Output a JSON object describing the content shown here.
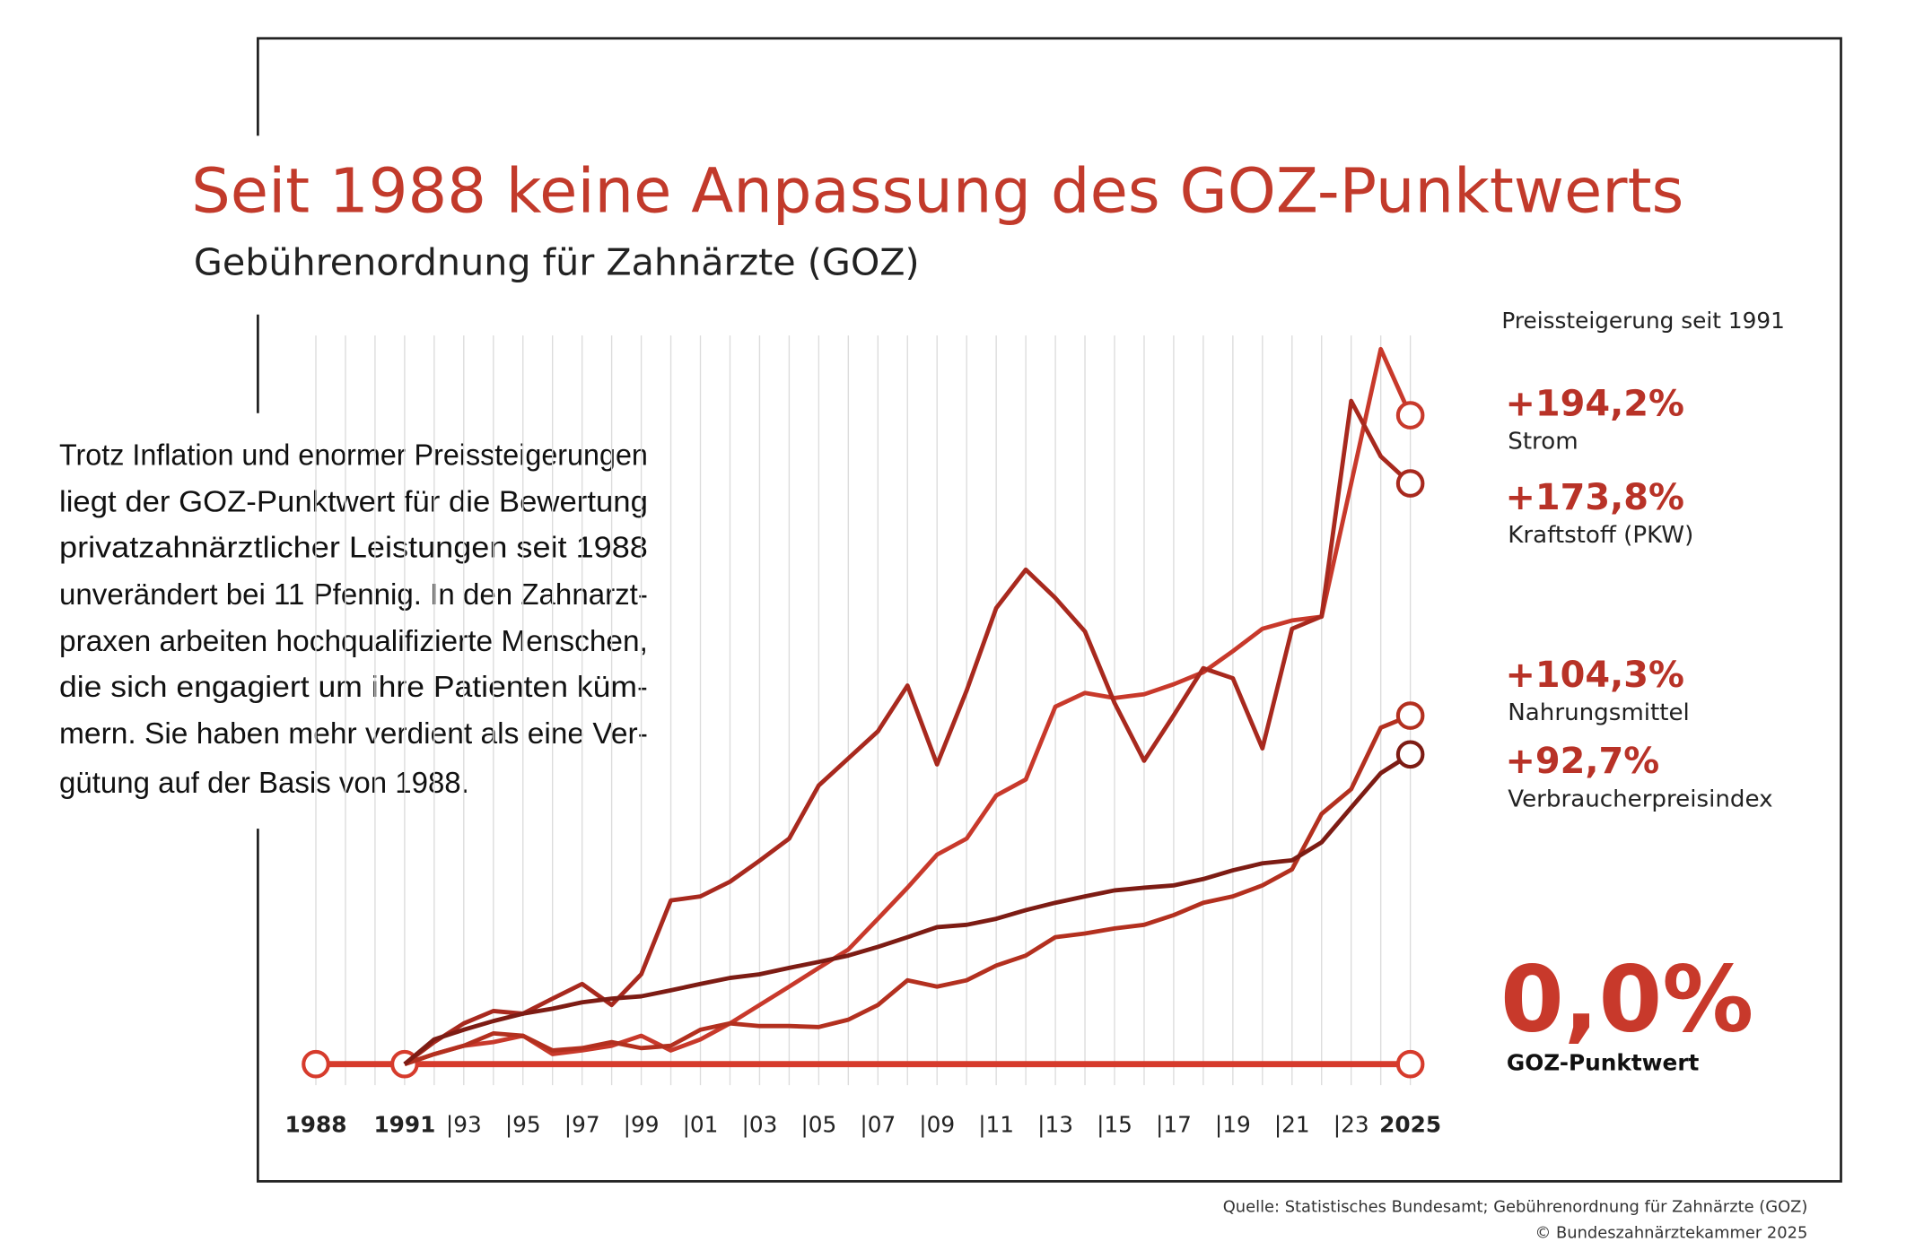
{
  "chart_data": {
    "type": "line",
    "title": "Seit 1988 keine Anpassung des GOZ-Punktwerts",
    "subtitle": "Gebührenordnung für Zahnärzte (GOZ)",
    "annotation": "Preissteigerung seit 1991",
    "text": [
      "Trotz Inflation und enormer Preissteigerungen",
      "liegt der GOZ-Punktwert für die Bewertung",
      "privatzahnärztlicher Leistungen seit 1988",
      "unverändert bei 11 Pfennig. In den Zahnarzt-",
      "praxen arbeiten hochqualifizierte Menschen,",
      "die sich engagiert um ihre Patienten küm-",
      "mern. Sie haben mehr verdient als eine Ver-",
      "gütung auf der Basis von 1988."
    ],
    "source": [
      "Quelle: Statistisches Bundesamt; Gebührenordnung für Zahnärzte (GOZ)",
      "© Bundeszahnärztekammer 2025"
    ],
    "xlim": [
      1988,
      2025
    ],
    "ylim": [
      0,
      215
    ],
    "xticks": [
      1988,
      1991,
      {
        "value": 1993,
        "label": "|93"
      },
      {
        "value": 1995,
        "label": "|95"
      },
      {
        "value": 1997,
        "label": "|97"
      },
      {
        "value": 1999,
        "label": "|99"
      },
      {
        "value": 2001,
        "label": "|01"
      },
      {
        "value": 2003,
        "label": "|03"
      },
      {
        "value": 2005,
        "label": "|05"
      },
      {
        "value": 2007,
        "label": "|07"
      },
      {
        "value": 2009,
        "label": "|09"
      },
      {
        "value": 2011,
        "label": "|11"
      },
      {
        "value": 2013,
        "label": "|13"
      },
      {
        "value": 2015,
        "label": "|15"
      },
      {
        "value": 2017,
        "label": "|17"
      },
      {
        "value": 2019,
        "label": "|19"
      },
      {
        "value": 2021,
        "label": "|21"
      },
      {
        "value": 2023,
        "label": "|23"
      },
      2025
    ],
    "xgrid": [
      1988,
      1989,
      1990,
      1991,
      1992,
      1993,
      1994,
      1995,
      1996,
      1997,
      1998,
      1999,
      2000,
      2001,
      2002,
      2003,
      2004,
      2005,
      2006,
      2007,
      2008,
      2009,
      2010,
      2011,
      2012,
      2013,
      2014,
      2015,
      2016,
      2017,
      2018,
      2019,
      2020,
      2021,
      2022,
      2023,
      2024,
      2025
    ],
    "x": [
      1991,
      1992,
      1993,
      1994,
      1995,
      1996,
      1997,
      1998,
      1999,
      2000,
      2001,
      2002,
      2003,
      2004,
      2005,
      2006,
      2007,
      2008,
      2009,
      2010,
      2011,
      2012,
      2013,
      2014,
      2015,
      2016,
      2017,
      2018,
      2019,
      2020,
      2021,
      2022,
      2023,
      2024,
      2025
    ],
    "series": [
      {
        "name": "Strom",
        "color": "#c8392b",
        "end_label": "+194,2%",
        "values": [
          0,
          3.0,
          5.5,
          6.6,
          8.5,
          3.0,
          4.1,
          5.5,
          8.5,
          4.1,
          7.4,
          12.2,
          17.7,
          23.2,
          28.8,
          34.3,
          43.5,
          52.8,
          62.7,
          67.5,
          80.4,
          85.2,
          107.0,
          111.1,
          109.6,
          110.7,
          113.7,
          117.3,
          123.6,
          130.3,
          132.8,
          133.9,
          173.8,
          214.0,
          194.2
        ]
      },
      {
        "name": "Kraftstoff (PKW)",
        "color": "#a8291e",
        "end_label": "+173,8%",
        "values": [
          0,
          6.6,
          12.2,
          15.9,
          15.1,
          19.6,
          24.0,
          17.7,
          26.9,
          49.0,
          50.2,
          54.6,
          60.9,
          67.5,
          83.4,
          91.5,
          99.6,
          113.3,
          89.7,
          111.8,
          136.5,
          148.0,
          139.5,
          129.5,
          108.1,
          90.8,
          104.4,
          118.5,
          115.5,
          94.5,
          130.3,
          134.0,
          198.5,
          181.9,
          173.8
        ]
      },
      {
        "name": "Nahrungsmittel",
        "color": "#b3301f",
        "end_label": "+104,3%",
        "values": [
          0,
          3.0,
          5.5,
          9.2,
          8.5,
          4.1,
          4.8,
          6.6,
          4.8,
          5.5,
          10.3,
          12.2,
          11.4,
          11.4,
          11.1,
          13.3,
          17.7,
          25.1,
          23.2,
          25.1,
          29.5,
          32.5,
          38.0,
          39.1,
          40.6,
          41.7,
          44.6,
          48.3,
          50.2,
          53.5,
          58.3,
          74.9,
          82.3,
          100.7,
          104.3
        ]
      },
      {
        "name": "Verbraucherpreisindex",
        "color": "#7d1c14",
        "end_label": "+92,7%",
        "values": [
          0,
          7.4,
          10.3,
          12.9,
          15.1,
          16.6,
          18.5,
          19.6,
          20.3,
          22.1,
          24.0,
          25.8,
          26.9,
          28.8,
          30.6,
          32.5,
          35.1,
          38.0,
          41.0,
          41.7,
          43.5,
          46.1,
          48.3,
          50.2,
          52.0,
          52.8,
          53.5,
          55.4,
          58.0,
          60.1,
          61.0,
          66.4,
          76.8,
          87.1,
          92.7
        ]
      }
    ],
    "goz": {
      "name": "GOZ-Punktwert",
      "color": "#d63b2c",
      "end_label": "0,0%",
      "x": [
        1988,
        1991,
        2025
      ],
      "values": [
        0,
        0,
        0
      ]
    }
  }
}
